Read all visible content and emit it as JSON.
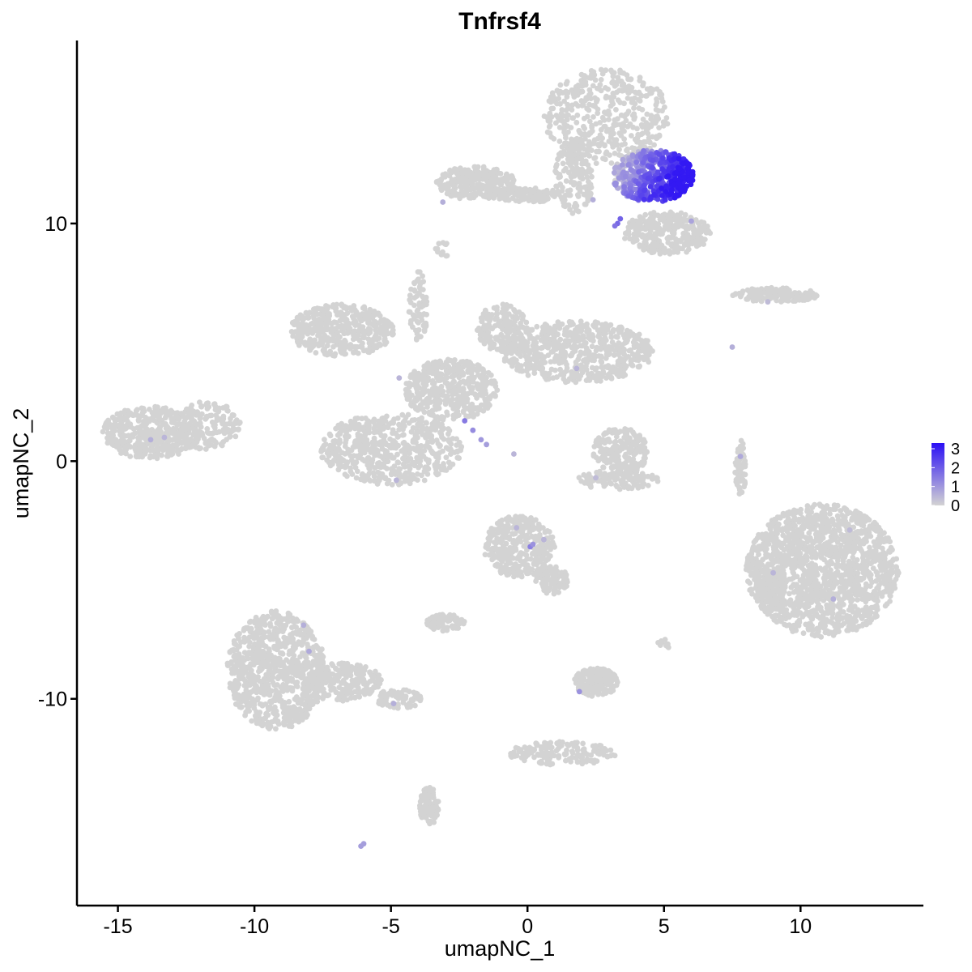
{
  "chart_data": {
    "type": "scatter",
    "title": "Tnfrsf4",
    "xlabel": "umapNC_1",
    "ylabel": "umapNC_2",
    "xlim": [
      -16.5,
      14.5
    ],
    "ylim": [
      -18.7,
      17.7
    ],
    "x_ticks": [
      -15,
      -10,
      -5,
      0,
      5,
      10
    ],
    "x_tick_labels": [
      "-15",
      "-10",
      "-5",
      "0",
      "5",
      "10"
    ],
    "y_ticks": [
      -10,
      0,
      10
    ],
    "y_tick_labels": [
      "-10",
      "0",
      "10"
    ],
    "grid": false,
    "legend": {
      "placement": "right",
      "type": "colorbar",
      "min": 0,
      "max": 3.3,
      "ticks": [
        0,
        1,
        2,
        3
      ],
      "tick_labels": [
        "0",
        "1",
        "2",
        "3"
      ],
      "low_color": "#d3d3d3",
      "high_color": "#2b0ff5"
    },
    "clusters": [
      {
        "name": "top-arc",
        "cx": 2.9,
        "cy": 14.5,
        "rx": 2.3,
        "ry": 2.0,
        "n": 420
      },
      {
        "name": "top-stem",
        "cx": 1.7,
        "cy": 12.0,
        "rx": 0.7,
        "ry": 1.6,
        "n": 160
      },
      {
        "name": "top-hot",
        "cx": 4.6,
        "cy": 12.0,
        "rx": 1.5,
        "ry": 1.1,
        "n": 520
      },
      {
        "name": "top-left-arm",
        "cx": -1.9,
        "cy": 11.7,
        "rx": 1.5,
        "ry": 0.7,
        "n": 260
      },
      {
        "name": "top-left-arm-tail",
        "cx": 0.0,
        "cy": 11.2,
        "rx": 1.3,
        "ry": 0.3,
        "n": 110
      },
      {
        "name": "top-right-lower",
        "cx": 5.1,
        "cy": 9.6,
        "rx": 1.6,
        "ry": 0.9,
        "n": 300
      },
      {
        "name": "small-top",
        "cx": -3.1,
        "cy": 8.9,
        "rx": 0.3,
        "ry": 0.3,
        "n": 14
      },
      {
        "name": "far-right-thin",
        "cx": 9.1,
        "cy": 7.0,
        "rx": 1.6,
        "ry": 0.3,
        "n": 150
      },
      {
        "name": "center-top-left",
        "cx": -6.8,
        "cy": 5.5,
        "rx": 1.9,
        "ry": 1.1,
        "n": 420
      },
      {
        "name": "center-right-lobe",
        "cx": 1.8,
        "cy": 4.6,
        "rx": 2.8,
        "ry": 1.3,
        "n": 620
      },
      {
        "name": "center-right-bump",
        "cx": -0.9,
        "cy": 5.6,
        "rx": 1.0,
        "ry": 1.0,
        "n": 160
      },
      {
        "name": "center-core",
        "cx": -2.8,
        "cy": 3.0,
        "rx": 1.7,
        "ry": 1.3,
        "n": 450
      },
      {
        "name": "center-stem",
        "cx": -4.0,
        "cy": 6.5,
        "rx": 0.35,
        "ry": 1.5,
        "n": 70
      },
      {
        "name": "center-lower",
        "cx": -5.0,
        "cy": 0.5,
        "rx": 2.6,
        "ry": 1.5,
        "n": 560
      },
      {
        "name": "left-blob",
        "cx": -13.8,
        "cy": 1.2,
        "rx": 1.8,
        "ry": 1.1,
        "n": 430
      },
      {
        "name": "left-blob-right",
        "cx": -11.8,
        "cy": 1.5,
        "rx": 1.3,
        "ry": 1.0,
        "n": 170
      },
      {
        "name": "mid-right-small",
        "cx": 3.4,
        "cy": 0.4,
        "rx": 1.0,
        "ry": 1.0,
        "n": 220
      },
      {
        "name": "mid-right-small-lower",
        "cx": 3.3,
        "cy": -0.8,
        "rx": 1.5,
        "ry": 0.4,
        "n": 110
      },
      {
        "name": "right-big",
        "cx": 10.8,
        "cy": -4.6,
        "rx": 2.8,
        "ry": 2.8,
        "n": 1500
      },
      {
        "name": "right-big-left",
        "cx": 8.9,
        "cy": -5.4,
        "rx": 0.6,
        "ry": 0.9,
        "n": 110
      },
      {
        "name": "mid-lower",
        "cx": -0.3,
        "cy": -3.6,
        "rx": 1.3,
        "ry": 1.3,
        "n": 330
      },
      {
        "name": "mid-lower-tail",
        "cx": 0.9,
        "cy": -5.0,
        "rx": 0.6,
        "ry": 0.6,
        "n": 90
      },
      {
        "name": "mid-lower-small",
        "cx": -3.0,
        "cy": -6.8,
        "rx": 0.7,
        "ry": 0.35,
        "n": 80
      },
      {
        "name": "lower-left-big",
        "cx": -9.2,
        "cy": -8.8,
        "rx": 1.8,
        "ry": 2.5,
        "n": 800
      },
      {
        "name": "lower-left-tail",
        "cx": -6.8,
        "cy": -9.3,
        "rx": 1.5,
        "ry": 0.8,
        "n": 240
      },
      {
        "name": "lower-left-tail-end",
        "cx": -4.7,
        "cy": -10.0,
        "rx": 0.9,
        "ry": 0.4,
        "n": 70
      },
      {
        "name": "bottom-stem",
        "cx": -3.6,
        "cy": -14.5,
        "rx": 0.35,
        "ry": 0.8,
        "n": 110
      },
      {
        "name": "bottom-right-small",
        "cx": 2.5,
        "cy": -9.3,
        "rx": 0.8,
        "ry": 0.6,
        "n": 180
      },
      {
        "name": "bottom-right-tail",
        "cx": 1.3,
        "cy": -12.3,
        "rx": 2.0,
        "ry": 0.5,
        "n": 150
      },
      {
        "name": "far-right-vertical",
        "cx": 7.8,
        "cy": -0.3,
        "rx": 0.2,
        "ry": 1.2,
        "n": 60
      },
      {
        "name": "tiny-right",
        "cx": 5.0,
        "cy": -7.7,
        "rx": 0.25,
        "ry": 0.2,
        "n": 12
      }
    ],
    "expression_gradient": {
      "cluster": "top-hot",
      "from": [
        3.5,
        13.0
      ],
      "to": [
        5.8,
        11.9
      ],
      "max_value": 3.3
    },
    "highlighted_points": [
      {
        "x": 3.3,
        "y": 10.0,
        "value": 1.8
      },
      {
        "x": 3.4,
        "y": 10.2,
        "value": 1.9
      },
      {
        "x": 3.2,
        "y": 9.9,
        "value": 1.6
      },
      {
        "x": -2.3,
        "y": 1.7,
        "value": 1.5
      },
      {
        "x": -2.0,
        "y": 1.3,
        "value": 1.2
      },
      {
        "x": -1.7,
        "y": 0.9,
        "value": 1.0
      },
      {
        "x": -1.5,
        "y": 0.7,
        "value": 0.9
      },
      {
        "x": 0.1,
        "y": -3.6,
        "value": 1.4
      },
      {
        "x": 0.2,
        "y": -3.5,
        "value": 1.1
      },
      {
        "x": -13.8,
        "y": 0.9,
        "value": 0.6
      },
      {
        "x": -13.3,
        "y": 1.0,
        "value": 0.5
      },
      {
        "x": -8.0,
        "y": -8.0,
        "value": 0.7
      },
      {
        "x": -8.2,
        "y": -6.9,
        "value": 0.6
      },
      {
        "x": -4.9,
        "y": -10.2,
        "value": 0.6
      },
      {
        "x": 1.9,
        "y": -9.7,
        "value": 1.1
      },
      {
        "x": -6.0,
        "y": -16.1,
        "value": 0.9
      },
      {
        "x": -6.1,
        "y": -16.2,
        "value": 0.9
      },
      {
        "x": 7.8,
        "y": 0.2,
        "value": 0.7
      },
      {
        "x": 7.5,
        "y": 4.8,
        "value": 0.6
      },
      {
        "x": -0.5,
        "y": 0.3,
        "value": 0.5
      },
      {
        "x": -4.7,
        "y": 3.5,
        "value": 0.5
      },
      {
        "x": 1.8,
        "y": 3.9,
        "value": 0.5
      },
      {
        "x": 11.2,
        "y": -5.8,
        "value": 0.6
      },
      {
        "x": 9.0,
        "y": -4.7,
        "value": 0.5
      },
      {
        "x": 2.4,
        "y": 11.0,
        "value": 0.6
      },
      {
        "x": -3.1,
        "y": 10.9,
        "value": 0.6
      },
      {
        "x": 6.0,
        "y": 10.1,
        "value": 0.8
      },
      {
        "x": -4.8,
        "y": -0.8,
        "value": 0.5
      },
      {
        "x": 0.6,
        "y": -3.3,
        "value": 0.5
      },
      {
        "x": -0.4,
        "y": -2.8,
        "value": 0.5
      },
      {
        "x": 2.5,
        "y": -0.7,
        "value": 0.4
      },
      {
        "x": 11.8,
        "y": -2.9,
        "value": 0.4
      },
      {
        "x": 8.8,
        "y": 6.7,
        "value": 0.4
      }
    ]
  }
}
